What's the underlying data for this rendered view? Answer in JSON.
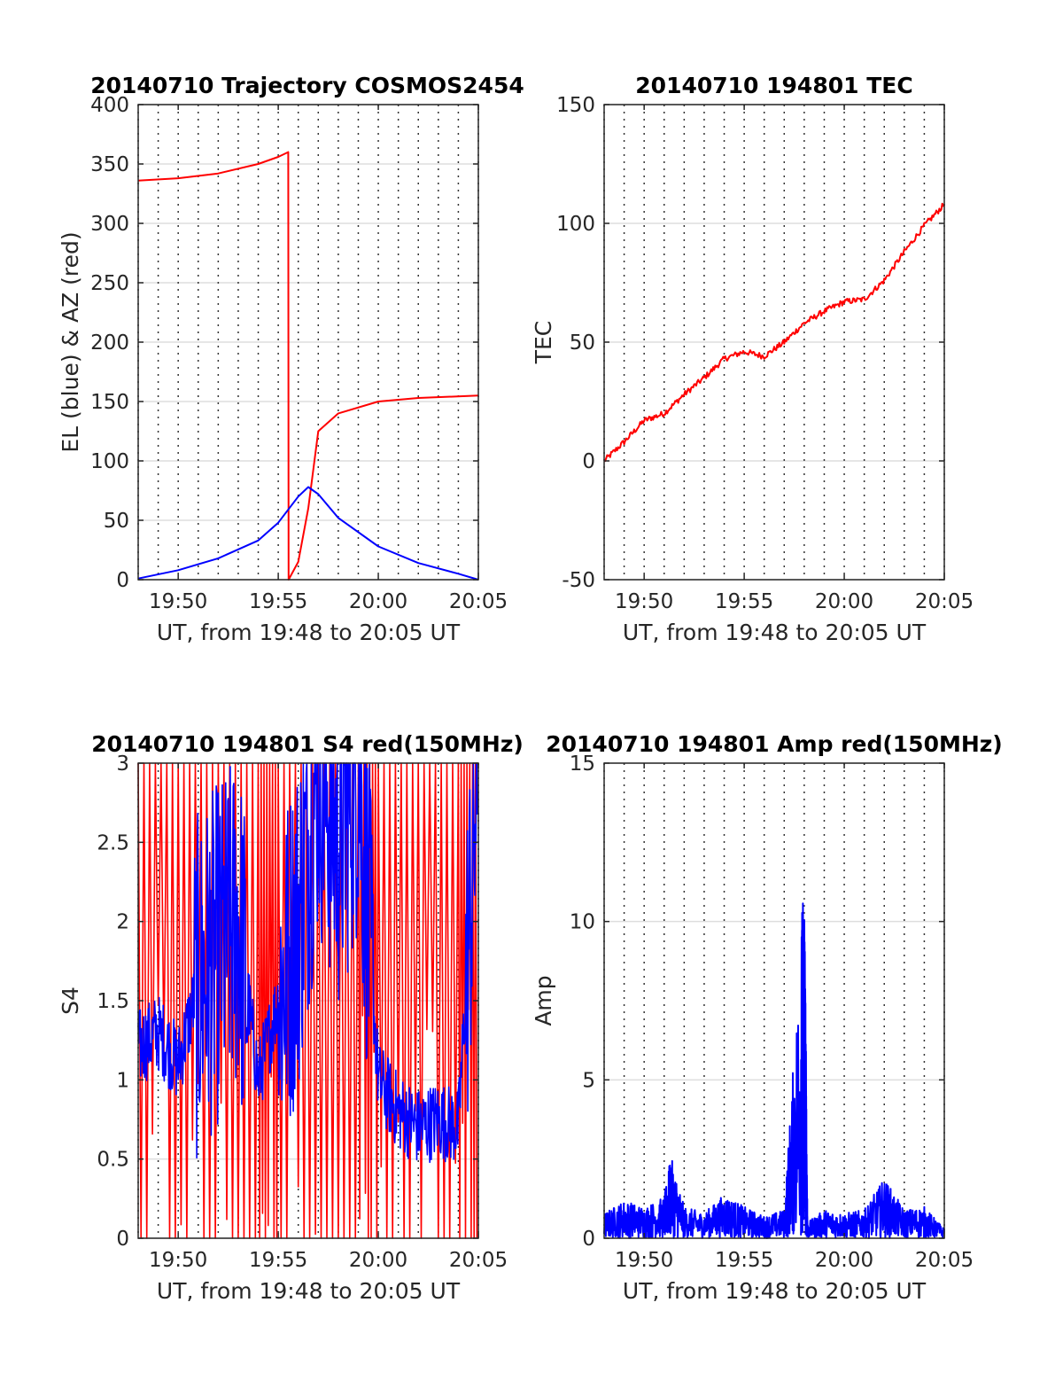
{
  "chart_data": [
    {
      "type": "line",
      "title": "20140710 Trajectory COSMOS2454",
      "xlabel": "UT, from 19:48 to 20:05 UT",
      "ylabel": "EL (blue) & AZ (red)",
      "xlim": [
        "19:48",
        "20:05"
      ],
      "ylim": [
        0,
        400
      ],
      "xticks": [
        "19:50",
        "19:55",
        "20:00",
        "20:05"
      ],
      "yticks": [
        0,
        50,
        100,
        150,
        200,
        250,
        300,
        350,
        400
      ],
      "grid": "y solid, x dotted every minute",
      "series": [
        {
          "name": "AZ",
          "color": "#ff0000",
          "x": [
            "19:48",
            "19:50",
            "19:52",
            "19:54",
            "19:55",
            "19:55:30",
            "19:55:31",
            "19:56",
            "19:56:30",
            "19:57",
            "19:58",
            "20:00",
            "20:02",
            "20:05"
          ],
          "y": [
            336,
            338,
            342,
            350,
            356,
            360,
            0,
            15,
            60,
            125,
            140,
            150,
            153,
            155
          ]
        },
        {
          "name": "EL",
          "color": "#0000ff",
          "x": [
            "19:48",
            "19:50",
            "19:52",
            "19:54",
            "19:55",
            "19:56",
            "19:56:30",
            "19:57",
            "19:58",
            "20:00",
            "20:02",
            "20:04",
            "20:05"
          ],
          "y": [
            1,
            8,
            18,
            33,
            48,
            70,
            78,
            72,
            52,
            28,
            14,
            5,
            0
          ]
        }
      ]
    },
    {
      "type": "line",
      "title": "20140710 194801 TEC",
      "xlabel": "UT, from 19:48 to 20:05 UT",
      "ylabel": "TEC",
      "xlim": [
        "19:48",
        "20:05"
      ],
      "ylim": [
        -50,
        150
      ],
      "xticks": [
        "19:50",
        "19:55",
        "20:00",
        "20:05"
      ],
      "yticks": [
        -50,
        0,
        50,
        100,
        150
      ],
      "series": [
        {
          "name": "TEC",
          "color": "#ff0000",
          "x": [
            "19:48",
            "19:49",
            "19:50",
            "19:51",
            "19:52",
            "19:53",
            "19:54",
            "19:55",
            "19:56",
            "19:57",
            "19:58",
            "19:59",
            "20:00",
            "20:01",
            "20:02",
            "20:03",
            "20:04",
            "20:05"
          ],
          "y": [
            0,
            8,
            17,
            20,
            28,
            35,
            43,
            46,
            44,
            50,
            58,
            63,
            67,
            68,
            76,
            88,
            99,
            108
          ]
        }
      ]
    },
    {
      "type": "line",
      "title": "20140710 194801 S4 red(150MHz)",
      "xlabel": "UT, from 19:48 to 20:05 UT",
      "ylabel": "S4",
      "xlim": [
        "19:48",
        "20:05"
      ],
      "ylim": [
        0,
        3
      ],
      "xticks": [
        "19:50",
        "19:55",
        "20:00",
        "20:05"
      ],
      "yticks": [
        "0",
        "0.5",
        "1",
        "1.5",
        "2",
        "2.5",
        "3"
      ],
      "series": [
        {
          "name": "",
          "color": "#ff0000",
          "x": [
            "19:48",
            "19:50",
            "19:52",
            "19:54",
            "19:55",
            "19:57",
            "19:59",
            "20:00",
            "20:02",
            "20:04",
            "20:05"
          ],
          "y": [
            3,
            0,
            3,
            0,
            3,
            0,
            3,
            0,
            3,
            0,
            3
          ]
        },
        {
          "name": "",
          "color": "#0000ff",
          "x": [
            "19:48",
            "19:49",
            "19:50",
            "19:51",
            "19:52",
            "19:53",
            "19:54",
            "19:55",
            "19:56",
            "19:57",
            "19:58",
            "19:59",
            "20:00",
            "20:01",
            "20:02",
            "20:03",
            "20:04",
            "20:05"
          ],
          "y": [
            1.2,
            1.3,
            1.1,
            1.6,
            1.8,
            2.0,
            1.0,
            1.5,
            2.0,
            3.0,
            2.5,
            3.0,
            1.0,
            0.8,
            0.7,
            0.75,
            0.7,
            3.0
          ]
        }
      ]
    },
    {
      "type": "line",
      "title": "20140710 194801 Amp red(150MHz)",
      "xlabel": "UT, from 19:48 to 20:05 UT",
      "ylabel": "Amp",
      "xlim": [
        "19:48",
        "20:05"
      ],
      "ylim": [
        0,
        15
      ],
      "xticks": [
        "19:50",
        "19:55",
        "20:00",
        "20:05"
      ],
      "yticks": [
        0,
        5,
        10,
        15
      ],
      "series": [
        {
          "name": "",
          "color": "#0000ff",
          "x": [
            "19:48",
            "19:49",
            "19:50",
            "19:51",
            "19:51:20",
            "19:52",
            "19:53",
            "19:54",
            "19:55",
            "19:56",
            "19:57",
            "19:57:50",
            "19:58",
            "19:58:10",
            "19:59",
            "20:00",
            "20:01",
            "20:02",
            "20:03",
            "20:04",
            "20:05"
          ],
          "y": [
            0.8,
            1.2,
            1.0,
            1.3,
            2.6,
            1.0,
            0.8,
            1.4,
            1.0,
            0.7,
            0.9,
            9.4,
            12.4,
            0.5,
            0.9,
            0.8,
            0.9,
            1.9,
            0.9,
            1.0,
            0.3
          ]
        }
      ]
    }
  ]
}
